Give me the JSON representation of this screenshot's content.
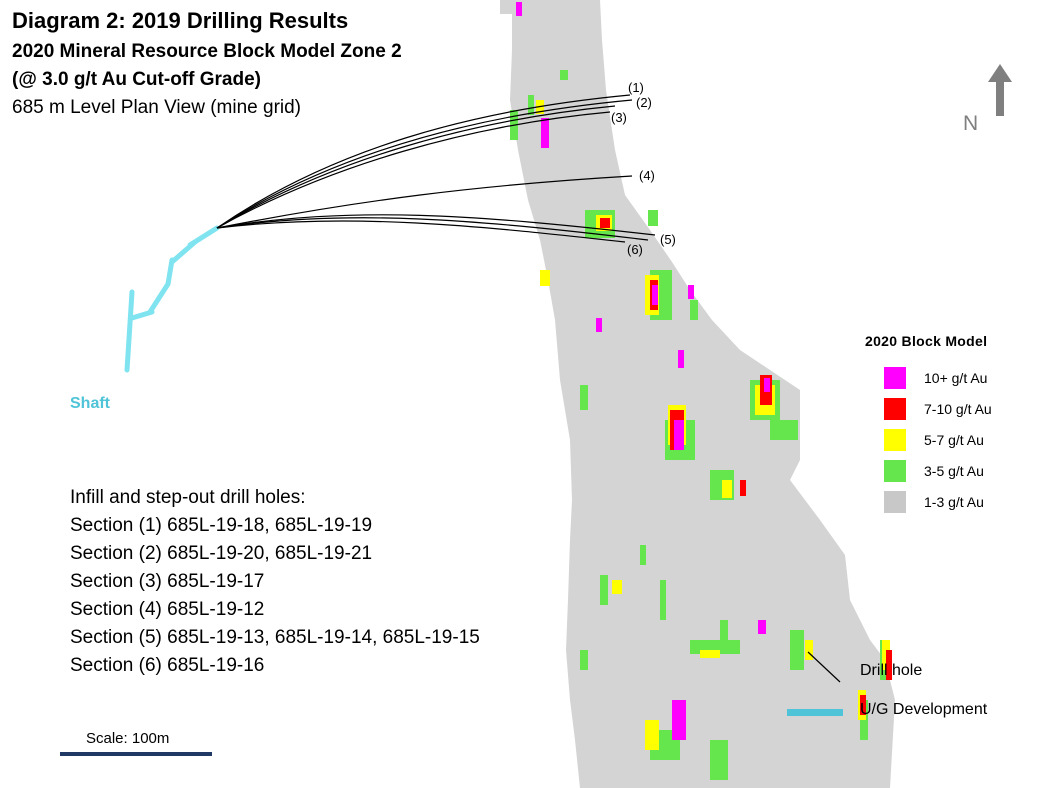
{
  "header": {
    "title": "Diagram 2: 2019 Drilling Results",
    "subtitle1": "2020 Mineral Resource Block Model Zone 2",
    "subtitle2": "(@ 3.0 g/t Au Cut-off Grade)",
    "subtitle3": "685 m Level Plan View (mine grid)"
  },
  "north_arrow": {
    "label": "N",
    "icon": "north-arrow-icon"
  },
  "shaft": {
    "label": "Shaft",
    "color": "#7fe3f0"
  },
  "drill_holes": {
    "heading": "Infill and step-out drill holes:",
    "sections": [
      "Section (1) 685L-19-18, 685L-19-19",
      "Section (2) 685L-19-20, 685L-19-21",
      "Section (3) 685L-19-17",
      "Section (4) 685L-19-12",
      "Section (5) 685L-19-13, 685L-19-14, 685L-19-15",
      "Section (6) 685L-19-16"
    ]
  },
  "section_labels": [
    "(1)",
    "(2)",
    "(3)",
    "(4)",
    "(5)",
    "(6)"
  ],
  "legend": {
    "title": "2020 Block Model",
    "items": [
      {
        "label": "10+ g/t Au",
        "color": "#ff00ff"
      },
      {
        "label": "7-10 g/t Au",
        "color": "#ff0000"
      },
      {
        "label": "5-7 g/t Au",
        "color": "#ffff00"
      },
      {
        "label": "3-5 g/t Au",
        "color": "#66e64d"
      },
      {
        "label": "1-3 g/t Au",
        "color": "#c8c8c8"
      }
    ]
  },
  "callouts": {
    "drill_hole": "Drill hole",
    "ug_development": "U/G Development",
    "ug_color": "#4fc3d7"
  },
  "scale": {
    "label": "Scale: 100m",
    "color": "#1f3864"
  }
}
